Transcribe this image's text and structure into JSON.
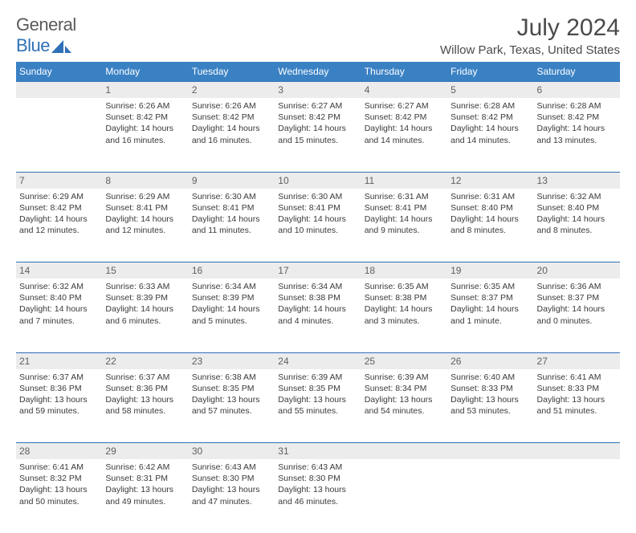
{
  "logo": {
    "general": "General",
    "blue": "Blue"
  },
  "title": "July 2024",
  "location": "Willow Park, Texas, United States",
  "colors": {
    "header_bg": "#3a81c4",
    "header_fg": "#ffffff",
    "daynum_bg": "#ececec",
    "daynum_fg": "#5f5f5f",
    "border": "#2f71b8",
    "text": "#3a3a3a",
    "logo_gray": "#595a5c",
    "logo_blue": "#2f71b8",
    "title_color": "#4a4a4a"
  },
  "days_of_week": [
    "Sunday",
    "Monday",
    "Tuesday",
    "Wednesday",
    "Thursday",
    "Friday",
    "Saturday"
  ],
  "weeks": [
    {
      "nums": [
        "",
        "1",
        "2",
        "3",
        "4",
        "5",
        "6"
      ],
      "cells": [
        null,
        {
          "sunrise": "Sunrise: 6:26 AM",
          "sunset": "Sunset: 8:42 PM",
          "daylight": "Daylight: 14 hours and 16 minutes."
        },
        {
          "sunrise": "Sunrise: 6:26 AM",
          "sunset": "Sunset: 8:42 PM",
          "daylight": "Daylight: 14 hours and 16 minutes."
        },
        {
          "sunrise": "Sunrise: 6:27 AM",
          "sunset": "Sunset: 8:42 PM",
          "daylight": "Daylight: 14 hours and 15 minutes."
        },
        {
          "sunrise": "Sunrise: 6:27 AM",
          "sunset": "Sunset: 8:42 PM",
          "daylight": "Daylight: 14 hours and 14 minutes."
        },
        {
          "sunrise": "Sunrise: 6:28 AM",
          "sunset": "Sunset: 8:42 PM",
          "daylight": "Daylight: 14 hours and 14 minutes."
        },
        {
          "sunrise": "Sunrise: 6:28 AM",
          "sunset": "Sunset: 8:42 PM",
          "daylight": "Daylight: 14 hours and 13 minutes."
        }
      ]
    },
    {
      "nums": [
        "7",
        "8",
        "9",
        "10",
        "11",
        "12",
        "13"
      ],
      "cells": [
        {
          "sunrise": "Sunrise: 6:29 AM",
          "sunset": "Sunset: 8:42 PM",
          "daylight": "Daylight: 14 hours and 12 minutes."
        },
        {
          "sunrise": "Sunrise: 6:29 AM",
          "sunset": "Sunset: 8:41 PM",
          "daylight": "Daylight: 14 hours and 12 minutes."
        },
        {
          "sunrise": "Sunrise: 6:30 AM",
          "sunset": "Sunset: 8:41 PM",
          "daylight": "Daylight: 14 hours and 11 minutes."
        },
        {
          "sunrise": "Sunrise: 6:30 AM",
          "sunset": "Sunset: 8:41 PM",
          "daylight": "Daylight: 14 hours and 10 minutes."
        },
        {
          "sunrise": "Sunrise: 6:31 AM",
          "sunset": "Sunset: 8:41 PM",
          "daylight": "Daylight: 14 hours and 9 minutes."
        },
        {
          "sunrise": "Sunrise: 6:31 AM",
          "sunset": "Sunset: 8:40 PM",
          "daylight": "Daylight: 14 hours and 8 minutes."
        },
        {
          "sunrise": "Sunrise: 6:32 AM",
          "sunset": "Sunset: 8:40 PM",
          "daylight": "Daylight: 14 hours and 8 minutes."
        }
      ]
    },
    {
      "nums": [
        "14",
        "15",
        "16",
        "17",
        "18",
        "19",
        "20"
      ],
      "cells": [
        {
          "sunrise": "Sunrise: 6:32 AM",
          "sunset": "Sunset: 8:40 PM",
          "daylight": "Daylight: 14 hours and 7 minutes."
        },
        {
          "sunrise": "Sunrise: 6:33 AM",
          "sunset": "Sunset: 8:39 PM",
          "daylight": "Daylight: 14 hours and 6 minutes."
        },
        {
          "sunrise": "Sunrise: 6:34 AM",
          "sunset": "Sunset: 8:39 PM",
          "daylight": "Daylight: 14 hours and 5 minutes."
        },
        {
          "sunrise": "Sunrise: 6:34 AM",
          "sunset": "Sunset: 8:38 PM",
          "daylight": "Daylight: 14 hours and 4 minutes."
        },
        {
          "sunrise": "Sunrise: 6:35 AM",
          "sunset": "Sunset: 8:38 PM",
          "daylight": "Daylight: 14 hours and 3 minutes."
        },
        {
          "sunrise": "Sunrise: 6:35 AM",
          "sunset": "Sunset: 8:37 PM",
          "daylight": "Daylight: 14 hours and 1 minute."
        },
        {
          "sunrise": "Sunrise: 6:36 AM",
          "sunset": "Sunset: 8:37 PM",
          "daylight": "Daylight: 14 hours and 0 minutes."
        }
      ]
    },
    {
      "nums": [
        "21",
        "22",
        "23",
        "24",
        "25",
        "26",
        "27"
      ],
      "cells": [
        {
          "sunrise": "Sunrise: 6:37 AM",
          "sunset": "Sunset: 8:36 PM",
          "daylight": "Daylight: 13 hours and 59 minutes."
        },
        {
          "sunrise": "Sunrise: 6:37 AM",
          "sunset": "Sunset: 8:36 PM",
          "daylight": "Daylight: 13 hours and 58 minutes."
        },
        {
          "sunrise": "Sunrise: 6:38 AM",
          "sunset": "Sunset: 8:35 PM",
          "daylight": "Daylight: 13 hours and 57 minutes."
        },
        {
          "sunrise": "Sunrise: 6:39 AM",
          "sunset": "Sunset: 8:35 PM",
          "daylight": "Daylight: 13 hours and 55 minutes."
        },
        {
          "sunrise": "Sunrise: 6:39 AM",
          "sunset": "Sunset: 8:34 PM",
          "daylight": "Daylight: 13 hours and 54 minutes."
        },
        {
          "sunrise": "Sunrise: 6:40 AM",
          "sunset": "Sunset: 8:33 PM",
          "daylight": "Daylight: 13 hours and 53 minutes."
        },
        {
          "sunrise": "Sunrise: 6:41 AM",
          "sunset": "Sunset: 8:33 PM",
          "daylight": "Daylight: 13 hours and 51 minutes."
        }
      ]
    },
    {
      "nums": [
        "28",
        "29",
        "30",
        "31",
        "",
        "",
        ""
      ],
      "cells": [
        {
          "sunrise": "Sunrise: 6:41 AM",
          "sunset": "Sunset: 8:32 PM",
          "daylight": "Daylight: 13 hours and 50 minutes."
        },
        {
          "sunrise": "Sunrise: 6:42 AM",
          "sunset": "Sunset: 8:31 PM",
          "daylight": "Daylight: 13 hours and 49 minutes."
        },
        {
          "sunrise": "Sunrise: 6:43 AM",
          "sunset": "Sunset: 8:30 PM",
          "daylight": "Daylight: 13 hours and 47 minutes."
        },
        {
          "sunrise": "Sunrise: 6:43 AM",
          "sunset": "Sunset: 8:30 PM",
          "daylight": "Daylight: 13 hours and 46 minutes."
        },
        null,
        null,
        null
      ]
    }
  ]
}
